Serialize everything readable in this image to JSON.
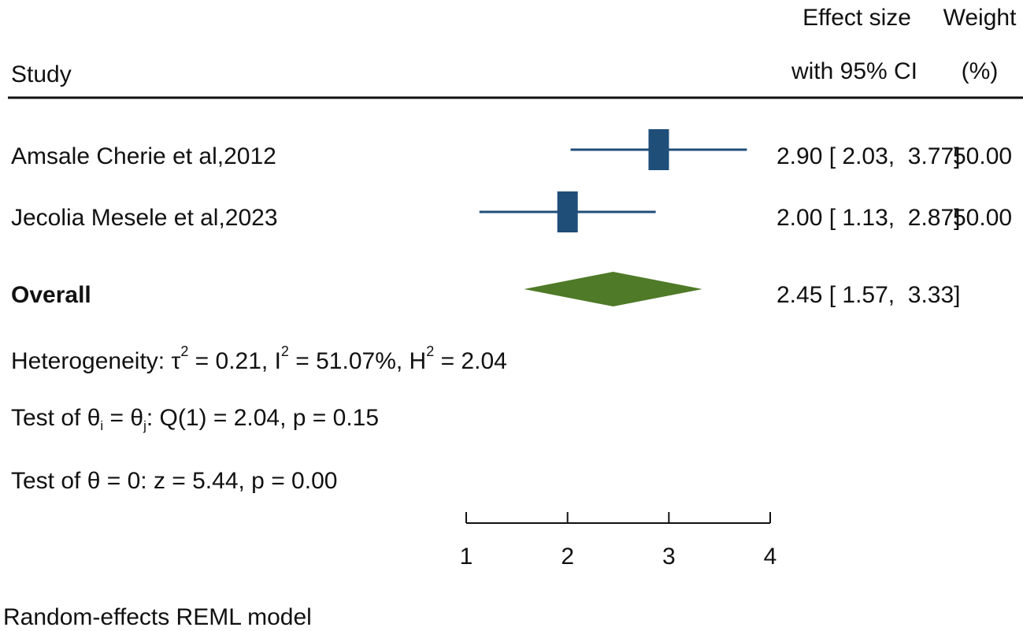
{
  "header": {
    "study": "Study",
    "effect_line1": "Effect size",
    "effect_line2": "with 95% CI",
    "weight_line1": "Weight",
    "weight_line2": "(%)"
  },
  "chart_data": {
    "type": "forest",
    "title": "",
    "xlabel": "",
    "xlim": [
      1,
      4
    ],
    "ticks": [
      1,
      2,
      3,
      4
    ],
    "studies": [
      {
        "name": "Amsale Cherie et al,2012",
        "effect": 2.9,
        "lower": 2.03,
        "upper": 3.77,
        "ci_text": "2.90 [ 2.03,  3.77]",
        "weight": 50.0,
        "weight_text": "50.00"
      },
      {
        "name": "Jecolia Mesele et al,2023",
        "effect": 2.0,
        "lower": 1.13,
        "upper": 2.87,
        "ci_text": "2.00 [ 1.13,  2.87]",
        "weight": 50.0,
        "weight_text": "50.00"
      }
    ],
    "overall": {
      "label": "Overall",
      "effect": 2.45,
      "lower": 1.57,
      "upper": 3.33,
      "ci_text": "2.45 [ 1.57,  3.33]"
    },
    "stats": {
      "heterogeneity": {
        "prefix": "Heterogeneity: τ",
        "sup1": "2",
        "mid1": " = 0.21, I",
        "sup2": "2",
        "mid2": " = 51.07%, H",
        "sup3": "2",
        "end": " = 2.04"
      },
      "test_equal": {
        "prefix": "Test of θ",
        "sub1": "i",
        "mid": " = θ",
        "sub2": "j",
        "end": ": Q(1) = 2.04, p = 0.15"
      },
      "test_zero": "Test of θ = 0: z = 5.44, p = 0.00"
    },
    "footer": "Random-effects REML model",
    "colors": {
      "study_marker": "#1f4e79",
      "overall_diamond": "#4f7a28",
      "rule": "#111111"
    }
  }
}
